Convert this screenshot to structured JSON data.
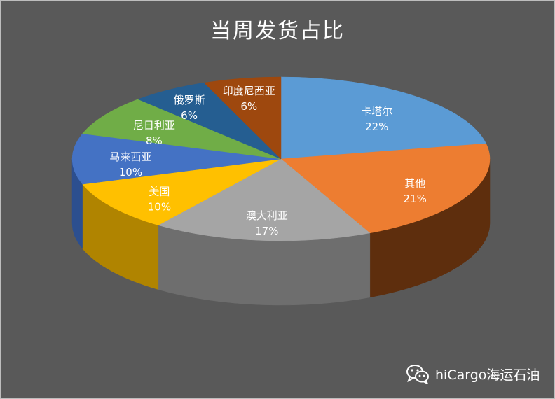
{
  "chart_data": {
    "type": "pie",
    "title": "当周发货占比",
    "slices": [
      {
        "label": "卡塔尔",
        "value": 22,
        "value_label": "22%",
        "color": "#5B9BD5",
        "side": "#3F73A3"
      },
      {
        "label": "其他",
        "value": 21,
        "value_label": "21%",
        "color": "#ED7D31",
        "side": "#5E2E0D"
      },
      {
        "label": "澳大利亚",
        "value": 17,
        "value_label": "17%",
        "color": "#A5A5A5",
        "side": "#6E6E6E"
      },
      {
        "label": "美国",
        "value": 10,
        "value_label": "10%",
        "color": "#FFC000",
        "side": "#B08400"
      },
      {
        "label": "马来西亚",
        "value": 10,
        "value_label": "10%",
        "color": "#4472C4",
        "side": "#2C4F8F"
      },
      {
        "label": "尼日利亚",
        "value": 8,
        "value_label": "8%",
        "color": "#70AD47",
        "side": "#4A7A2E"
      },
      {
        "label": "俄罗斯",
        "value": 6,
        "value_label": "6%",
        "color": "#255E91",
        "side": "#163A5A"
      },
      {
        "label": "印度尼西亚",
        "value": 6,
        "value_label": "6%",
        "color": "#9E480E",
        "side": "#5E2A08"
      }
    ],
    "legend": "none",
    "style": "3d-pie"
  },
  "watermark": {
    "text": "hiCargo海运石油",
    "icon": "wechat-icon"
  }
}
